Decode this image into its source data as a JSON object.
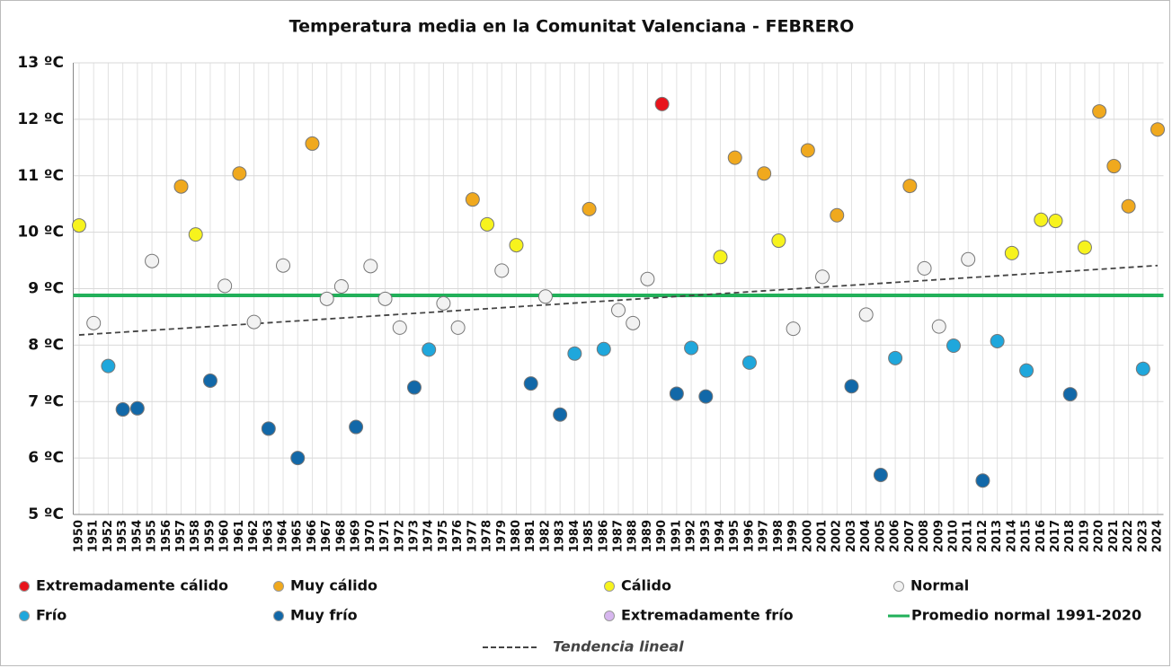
{
  "chart_data": {
    "type": "scatter",
    "title": "Temperatura media en la Comunitat Valenciana - FEBRERO",
    "xlim": [
      1949.6,
      2024.4
    ],
    "xticks": [
      1950,
      1951,
      1952,
      1953,
      1954,
      1955,
      1956,
      1957,
      1958,
      1959,
      1960,
      1961,
      1962,
      1963,
      1964,
      1965,
      1966,
      1967,
      1968,
      1969,
      1970,
      1971,
      1972,
      1973,
      1974,
      1975,
      1976,
      1977,
      1978,
      1979,
      1980,
      1981,
      1982,
      1983,
      1984,
      1985,
      1986,
      1987,
      1988,
      1989,
      1990,
      1991,
      1992,
      1993,
      1994,
      1995,
      1996,
      1997,
      1998,
      1999,
      2000,
      2001,
      2002,
      2003,
      2004,
      2005,
      2006,
      2007,
      2008,
      2009,
      2010,
      2011,
      2012,
      2013,
      2014,
      2015,
      2016,
      2017,
      2018,
      2019,
      2020,
      2021,
      2022,
      2023,
      2024
    ],
    "ylim": [
      5,
      13
    ],
    "yticks": [
      {
        "value": 5,
        "label": "5 ºC"
      },
      {
        "value": 6,
        "label": "6 ºC"
      },
      {
        "value": 7,
        "label": "7 ºC"
      },
      {
        "value": 8,
        "label": "8 ºC"
      },
      {
        "value": 9,
        "label": "9 ºC"
      },
      {
        "value": 10,
        "label": "10 ºC"
      },
      {
        "value": 11,
        "label": "11 ºC"
      },
      {
        "value": 12,
        "label": "12 ºC"
      },
      {
        "value": 13,
        "label": "13 ºC"
      }
    ],
    "grid": true,
    "series": [
      {
        "name": "Extremadamente cálido",
        "color": "#e8141b",
        "x": [
          1990
        ],
        "values": [
          12.27
        ]
      },
      {
        "name": "Muy cálido",
        "color": "#f0a91e",
        "x": [
          1957,
          1961,
          1966,
          1977,
          1985,
          1995,
          1997,
          2000,
          2002,
          2007,
          2020,
          2021,
          2022,
          2024
        ],
        "values": [
          10.81,
          11.04,
          11.57,
          10.58,
          10.41,
          11.32,
          11.04,
          11.45,
          10.3,
          10.82,
          12.14,
          11.17,
          10.46,
          11.82
        ]
      },
      {
        "name": "Cálido",
        "color": "#f7f31d",
        "x": [
          1950,
          1958,
          1978,
          1980,
          1994,
          1998,
          2014,
          2016,
          2017,
          2019
        ],
        "values": [
          10.12,
          9.96,
          10.14,
          9.77,
          9.56,
          9.85,
          9.63,
          10.22,
          10.2,
          9.73
        ]
      },
      {
        "name": "Normal",
        "color": "#f2f2f2",
        "x": [
          1951,
          1955,
          1960,
          1962,
          1964,
          1967,
          1968,
          1970,
          1971,
          1972,
          1975,
          1976,
          1979,
          1982,
          1987,
          1988,
          1989,
          1999,
          2001,
          2004,
          2008,
          2009,
          2011
        ],
        "values": [
          8.39,
          9.49,
          9.05,
          8.41,
          9.41,
          8.82,
          9.04,
          9.4,
          8.82,
          8.31,
          8.74,
          8.31,
          9.32,
          8.86,
          8.62,
          8.39,
          9.17,
          8.29,
          9.21,
          8.54,
          9.36,
          8.33,
          9.52
        ]
      },
      {
        "name": "Frío",
        "color": "#1fa7dc",
        "x": [
          1952,
          1974,
          1984,
          1986,
          1992,
          1996,
          2006,
          2010,
          2013,
          2015,
          2023
        ],
        "values": [
          7.63,
          7.92,
          7.85,
          7.93,
          7.95,
          7.69,
          7.77,
          7.99,
          8.07,
          7.55,
          7.58
        ]
      },
      {
        "name": "Muy frío",
        "color": "#1268a8",
        "x": [
          1953,
          1954,
          1959,
          1963,
          1965,
          1969,
          1973,
          1981,
          1983,
          1991,
          1993,
          2003,
          2005,
          2012,
          2018
        ],
        "values": [
          6.86,
          6.88,
          7.37,
          6.52,
          6.0,
          6.55,
          7.25,
          7.32,
          6.77,
          7.14,
          7.09,
          7.27,
          5.7,
          5.6,
          7.13
        ]
      },
      {
        "name": "Extremadamente frío",
        "color": "#d7b6ef",
        "x": [],
        "values": []
      }
    ],
    "reference_line": {
      "name": "Promedio normal 1991-2020",
      "color": "#22b05a",
      "value": 8.88
    },
    "trend": {
      "name": "Tendencia lineal",
      "color": "#444444",
      "x": [
        1950,
        2024
      ],
      "values": [
        8.18,
        9.41
      ]
    }
  }
}
